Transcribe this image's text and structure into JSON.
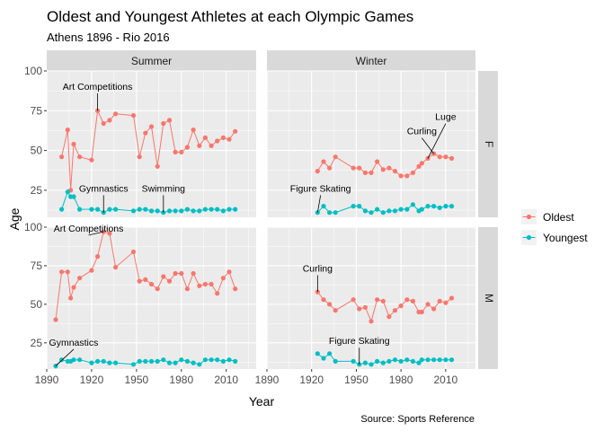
{
  "chart_data": {
    "type": "line",
    "title": "Oldest and Youngest Athletes at each Olympic Games",
    "subtitle": "Athens 1896 - Rio 2016",
    "xlabel": "Year",
    "ylabel": "Age",
    "caption": "Source: Sports Reference",
    "xlim": [
      1890,
      2030
    ],
    "ylim": [
      8,
      100
    ],
    "x_ticks": [
      1890,
      1920,
      1950,
      1980,
      2010
    ],
    "y_ticks": [
      25,
      50,
      75,
      100
    ],
    "facet_cols": [
      "Summer",
      "Winter"
    ],
    "facet_rows": [
      "F",
      "M"
    ],
    "legend": {
      "position": "right",
      "entries": [
        "Oldest",
        "Youngest"
      ]
    },
    "colors": {
      "Oldest": "#F8766D",
      "Youngest": "#00BFC4",
      "panel": "#EBEBEB",
      "strip": "#D9D9D9"
    },
    "panels": [
      {
        "col": "Summer",
        "row": "F",
        "series": [
          {
            "name": "Oldest",
            "points": [
              [
                1900,
                46
              ],
              [
                1904,
                63
              ],
              [
                1906,
                25
              ],
              [
                1908,
                54
              ],
              [
                1912,
                46
              ],
              [
                1920,
                44
              ],
              [
                1924,
                75
              ],
              [
                1928,
                67
              ],
              [
                1932,
                69
              ],
              [
                1936,
                73
              ],
              [
                1948,
                72
              ],
              [
                1952,
                46
              ],
              [
                1956,
                61
              ],
              [
                1960,
                65
              ],
              [
                1964,
                40
              ],
              [
                1968,
                67
              ],
              [
                1972,
                69
              ],
              [
                1976,
                49
              ],
              [
                1980,
                49
              ],
              [
                1984,
                52
              ],
              [
                1988,
                63
              ],
              [
                1992,
                53
              ],
              [
                1996,
                58
              ],
              [
                2000,
                53
              ],
              [
                2004,
                56
              ],
              [
                2008,
                58
              ],
              [
                2012,
                57
              ],
              [
                2016,
                62
              ]
            ]
          },
          {
            "name": "Youngest",
            "points": [
              [
                1900,
                13
              ],
              [
                1904,
                24
              ],
              [
                1906,
                21
              ],
              [
                1908,
                21
              ],
              [
                1912,
                13
              ],
              [
                1920,
                13
              ],
              [
                1924,
                13
              ],
              [
                1928,
                11
              ],
              [
                1932,
                13
              ],
              [
                1936,
                13
              ],
              [
                1948,
                12
              ],
              [
                1952,
                13
              ],
              [
                1956,
                13
              ],
              [
                1960,
                12
              ],
              [
                1964,
                12
              ],
              [
                1968,
                11
              ],
              [
                1972,
                12
              ],
              [
                1976,
                12
              ],
              [
                1980,
                12
              ],
              [
                1984,
                13
              ],
              [
                1988,
                12
              ],
              [
                1992,
                12
              ],
              [
                1996,
                13
              ],
              [
                2000,
                13
              ],
              [
                2004,
                13
              ],
              [
                2008,
                12
              ],
              [
                2012,
                13
              ],
              [
                2016,
                13
              ]
            ]
          }
        ],
        "annotations": [
          {
            "label": "Art Competitions",
            "x": 1924,
            "y": 75,
            "tx": 1924,
            "ty": 87
          },
          {
            "label": "Gymnastics",
            "x": 1928,
            "y": 11,
            "tx": 1928,
            "ty": 23
          },
          {
            "label": "Swimming",
            "x": 1968,
            "y": 11,
            "tx": 1968,
            "ty": 23
          }
        ]
      },
      {
        "col": "Winter",
        "row": "F",
        "series": [
          {
            "name": "Oldest",
            "points": [
              [
                1924,
                37
              ],
              [
                1928,
                43
              ],
              [
                1932,
                39
              ],
              [
                1936,
                46
              ],
              [
                1948,
                39
              ],
              [
                1952,
                39
              ],
              [
                1956,
                36
              ],
              [
                1960,
                36
              ],
              [
                1964,
                43
              ],
              [
                1968,
                38
              ],
              [
                1972,
                39
              ],
              [
                1976,
                37
              ],
              [
                1980,
                34
              ],
              [
                1984,
                34
              ],
              [
                1988,
                36
              ],
              [
                1992,
                40
              ],
              [
                1994,
                42
              ],
              [
                1998,
                45
              ],
              [
                2002,
                48
              ],
              [
                2006,
                46
              ],
              [
                2010,
                46
              ],
              [
                2014,
                45
              ]
            ]
          },
          {
            "name": "Youngest",
            "points": [
              [
                1924,
                11
              ],
              [
                1928,
                15
              ],
              [
                1932,
                11
              ],
              [
                1936,
                11
              ],
              [
                1948,
                15
              ],
              [
                1952,
                15
              ],
              [
                1956,
                12
              ],
              [
                1960,
                11
              ],
              [
                1964,
                13
              ],
              [
                1968,
                11
              ],
              [
                1972,
                12
              ],
              [
                1976,
                12
              ],
              [
                1980,
                13
              ],
              [
                1984,
                13
              ],
              [
                1988,
                16
              ],
              [
                1992,
                12
              ],
              [
                1994,
                13
              ],
              [
                1998,
                15
              ],
              [
                2002,
                15
              ],
              [
                2006,
                14
              ],
              [
                2010,
                15
              ],
              [
                2014,
                15
              ]
            ]
          }
        ],
        "annotations": [
          {
            "label": "Figure Skating",
            "x": 1924,
            "y": 11,
            "tx": 1926,
            "ty": 23
          },
          {
            "label": "Curling",
            "x": 2002,
            "y": 48,
            "tx": 1994,
            "ty": 59
          },
          {
            "label": "Luge",
            "x": 1998,
            "y": 45,
            "tx": 2010,
            "ty": 68
          }
        ]
      },
      {
        "col": "Summer",
        "row": "M",
        "series": [
          {
            "name": "Oldest",
            "points": [
              [
                1896,
                40
              ],
              [
                1900,
                71
              ],
              [
                1904,
                71
              ],
              [
                1906,
                54
              ],
              [
                1908,
                61
              ],
              [
                1912,
                67
              ],
              [
                1920,
                72
              ],
              [
                1924,
                81
              ],
              [
                1928,
                97
              ],
              [
                1932,
                96
              ],
              [
                1936,
                74
              ],
              [
                1948,
                84
              ],
              [
                1952,
                65
              ],
              [
                1956,
                66
              ],
              [
                1960,
                63
              ],
              [
                1964,
                60
              ],
              [
                1968,
                68
              ],
              [
                1972,
                65
              ],
              [
                1976,
                70
              ],
              [
                1980,
                70
              ],
              [
                1984,
                60
              ],
              [
                1988,
                70
              ],
              [
                1992,
                62
              ],
              [
                1996,
                63
              ],
              [
                2000,
                63
              ],
              [
                2004,
                57
              ],
              [
                2008,
                67
              ],
              [
                2012,
                71
              ],
              [
                2016,
                60
              ]
            ]
          },
          {
            "name": "Youngest",
            "points": [
              [
                1896,
                10
              ],
              [
                1900,
                14
              ],
              [
                1904,
                13
              ],
              [
                1906,
                13
              ],
              [
                1908,
                14
              ],
              [
                1912,
                14
              ],
              [
                1920,
                12
              ],
              [
                1924,
                13
              ],
              [
                1928,
                13
              ],
              [
                1932,
                12
              ],
              [
                1936,
                12
              ],
              [
                1948,
                11
              ],
              [
                1952,
                13
              ],
              [
                1956,
                13
              ],
              [
                1960,
                13
              ],
              [
                1964,
                13
              ],
              [
                1968,
                14
              ],
              [
                1972,
                12
              ],
              [
                1976,
                12
              ],
              [
                1980,
                14
              ],
              [
                1984,
                13
              ],
              [
                1988,
                12
              ],
              [
                1992,
                11
              ],
              [
                1996,
                14
              ],
              [
                2000,
                14
              ],
              [
                2004,
                14
              ],
              [
                2008,
                13
              ],
              [
                2012,
                14
              ],
              [
                2016,
                13
              ]
            ]
          }
        ],
        "annotations": [
          {
            "label": "Art Competitions",
            "x": 1928,
            "y": 97,
            "tx": 1918,
            "ty": 96
          },
          {
            "label": "Gymnastics",
            "x": 1896,
            "y": 10,
            "tx": 1908,
            "ty": 22
          }
        ]
      },
      {
        "col": "Winter",
        "row": "M",
        "series": [
          {
            "name": "Oldest",
            "points": [
              [
                1924,
                58
              ],
              [
                1928,
                53
              ],
              [
                1932,
                50
              ],
              [
                1936,
                46
              ],
              [
                1948,
                53
              ],
              [
                1952,
                47
              ],
              [
                1956,
                48
              ],
              [
                1960,
                39
              ],
              [
                1964,
                53
              ],
              [
                1968,
                52
              ],
              [
                1972,
                42
              ],
              [
                1976,
                46
              ],
              [
                1980,
                49
              ],
              [
                1984,
                53
              ],
              [
                1988,
                52
              ],
              [
                1992,
                45
              ],
              [
                1994,
                45
              ],
              [
                1998,
                50
              ],
              [
                2002,
                47
              ],
              [
                2006,
                52
              ],
              [
                2010,
                51
              ],
              [
                2014,
                54
              ]
            ]
          },
          {
            "name": "Youngest",
            "points": [
              [
                1924,
                18
              ],
              [
                1928,
                15
              ],
              [
                1932,
                18
              ],
              [
                1936,
                13
              ],
              [
                1948,
                13
              ],
              [
                1952,
                11
              ],
              [
                1956,
                12
              ],
              [
                1960,
                11
              ],
              [
                1964,
                13
              ],
              [
                1968,
                12
              ],
              [
                1972,
                13
              ],
              [
                1976,
                14
              ],
              [
                1980,
                13
              ],
              [
                1984,
                14
              ],
              [
                1988,
                13
              ],
              [
                1992,
                12
              ],
              [
                1994,
                14
              ],
              [
                1998,
                14
              ],
              [
                2002,
                14
              ],
              [
                2006,
                14
              ],
              [
                2010,
                14
              ],
              [
                2014,
                14
              ]
            ]
          }
        ],
        "annotations": [
          {
            "label": "Curling",
            "x": 1924,
            "y": 58,
            "tx": 1924,
            "ty": 70
          },
          {
            "label": "Figure Skating",
            "x": 1952,
            "y": 11,
            "tx": 1952,
            "ty": 23
          }
        ]
      }
    ]
  }
}
